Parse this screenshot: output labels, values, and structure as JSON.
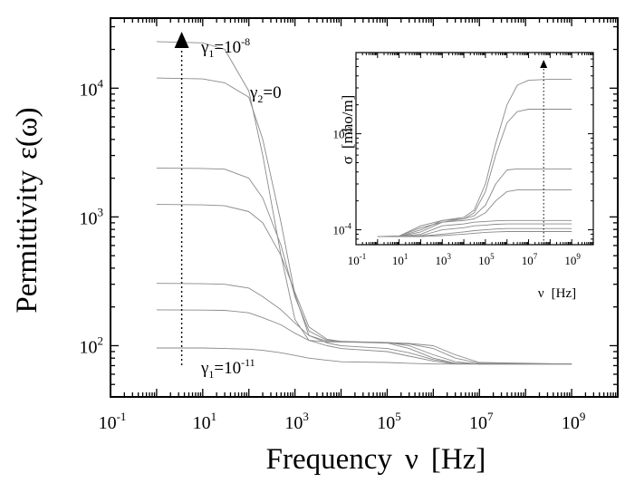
{
  "chart_data": [
    {
      "type": "line",
      "xlabel_main": "Frequency",
      "xlabel_symbol": "ν",
      "xlabel_unit": "[Hz]",
      "ylabel": "Permittivity",
      "ylabel_symbol": "ε(ω)",
      "xscale": "log",
      "yscale": "log",
      "xlim": [
        0.1,
        10000000000
      ],
      "ylim": [
        40,
        35000
      ],
      "grid": false,
      "x_ticks": [
        {
          "b": "10",
          "e": "-1"
        },
        {
          "b": "10",
          "e": "1"
        },
        {
          "b": "10",
          "e": "3"
        },
        {
          "b": "10",
          "e": "5"
        },
        {
          "b": "10",
          "e": "7"
        },
        {
          "b": "10",
          "e": "9"
        }
      ],
      "y_ticks": [
        {
          "b": "10",
          "e": "2"
        },
        {
          "b": "10",
          "e": "3"
        },
        {
          "b": "10",
          "e": "4"
        }
      ],
      "annotations": {
        "gamma1_top": {
          "base": "γ",
          "sub": "1",
          "eq": "=10",
          "exp": "-8"
        },
        "gamma2": {
          "base": "γ",
          "sub": "2",
          "eq": "=0"
        },
        "gamma1_bottom": {
          "base": "γ",
          "sub": "1",
          "eq": "=10",
          "exp": "-11"
        }
      },
      "arrow_x": 3.5,
      "x": [
        1,
        10,
        30,
        100,
        200,
        500,
        1000,
        2000,
        5000,
        10000,
        100000,
        300000,
        1000000,
        3000000,
        10000000,
        1000000000
      ],
      "series": [
        {
          "values": [
            23000,
            22500,
            20000,
            9500,
            3000,
            500,
            160,
            110,
            107,
            107,
            105,
            95,
            80,
            73,
            72,
            72
          ]
        },
        {
          "values": [
            12000,
            11800,
            11000,
            8500,
            4000,
            900,
            250,
            120,
            108,
            107,
            106,
            100,
            85,
            75,
            72,
            72
          ]
        },
        {
          "values": [
            2400,
            2380,
            2350,
            2000,
            1400,
            600,
            240,
            130,
            110,
            108,
            105,
            103,
            95,
            80,
            73,
            72
          ]
        },
        {
          "values": [
            1250,
            1240,
            1220,
            1100,
            900,
            500,
            260,
            140,
            112,
            108,
            106,
            104,
            100,
            85,
            74,
            72
          ]
        },
        {
          "values": [
            305,
            303,
            300,
            280,
            240,
            190,
            150,
            120,
            105,
            100,
            95,
            88,
            78,
            73,
            72,
            72
          ]
        },
        {
          "values": [
            190,
            189,
            188,
            180,
            165,
            145,
            125,
            110,
            100,
            95,
            90,
            83,
            76,
            72,
            72,
            72
          ]
        },
        {
          "values": [
            96,
            96,
            95,
            94,
            92,
            88,
            84,
            80,
            77,
            75,
            74,
            73,
            72,
            72,
            72,
            72
          ]
        }
      ]
    },
    {
      "type": "line",
      "xlabel_symbol": "ν",
      "xlabel_unit": "[Hz]",
      "ylabel_symbol": "σ",
      "ylabel_unit": "[mho/m]",
      "xscale": "log",
      "yscale": "log",
      "xlim": [
        0.1,
        10000000000
      ],
      "ylim": [
        7e-05,
        0.007
      ],
      "grid": false,
      "x_ticks": [
        {
          "b": "10",
          "e": "-1"
        },
        {
          "b": "10",
          "e": "1"
        },
        {
          "b": "10",
          "e": "3"
        },
        {
          "b": "10",
          "e": "5"
        },
        {
          "b": "10",
          "e": "7"
        },
        {
          "b": "10",
          "e": "9"
        }
      ],
      "y_ticks": [
        {
          "b": "10",
          "e": "-4"
        },
        {
          "b": "10",
          "e": "-3"
        }
      ],
      "arrow_x": 50000000,
      "x": [
        1,
        10,
        100,
        1000,
        10000,
        30000,
        100000,
        300000,
        1000000,
        3000000,
        10000000,
        100000000,
        1000000000
      ],
      "series": [
        {
          "values": [
            8.5e-05,
            8.6e-05,
            0.00011,
            0.000125,
            0.000135,
            0.00016,
            0.0003,
            0.0008,
            0.002,
            0.0032,
            0.0036,
            0.0037,
            0.0037
          ]
        },
        {
          "values": [
            8.5e-05,
            8.6e-05,
            0.000105,
            0.00012,
            0.00013,
            0.00015,
            0.00025,
            0.0006,
            0.0013,
            0.0017,
            0.0018,
            0.0018,
            0.0018
          ]
        },
        {
          "values": [
            8.5e-05,
            8.5e-05,
            0.0001,
            0.000125,
            0.00013,
            0.00014,
            0.00018,
            0.0003,
            0.00042,
            0.00043,
            0.00043,
            0.00043,
            0.00043
          ]
        },
        {
          "values": [
            8.5e-05,
            8.5e-05,
            9.5e-05,
            0.00012,
            0.000125,
            0.00013,
            0.00015,
            0.0002,
            0.00025,
            0.00026,
            0.00026,
            0.00026,
            0.00026
          ]
        },
        {
          "values": [
            8.5e-05,
            8.5e-05,
            9e-05,
            0.00011,
            0.000115,
            0.00012,
            0.000122,
            0.000124,
            0.000125,
            0.000125,
            0.000125,
            0.000125,
            0.000125
          ]
        },
        {
          "values": [
            8.5e-05,
            8.5e-05,
            8.7e-05,
            0.0001,
            0.000105,
            0.00011,
            0.000112,
            0.000114,
            0.000115,
            0.000115,
            0.000115,
            0.000115,
            0.000115
          ]
        },
        {
          "values": [
            8.5e-05,
            8.5e-05,
            8.6e-05,
            9e-05,
            9.5e-05,
            9.8e-05,
            0.0001,
            0.000102,
            0.000103,
            0.000103,
            0.000103,
            0.000103,
            0.000103
          ]
        },
        {
          "values": [
            8.5e-05,
            8.5e-05,
            8.5e-05,
            8.7e-05,
            9e-05,
            9.2e-05,
            9.4e-05,
            9.5e-05,
            9.6e-05,
            9.6e-05,
            9.6e-05,
            9.6e-05,
            9.6e-05
          ]
        }
      ]
    }
  ]
}
